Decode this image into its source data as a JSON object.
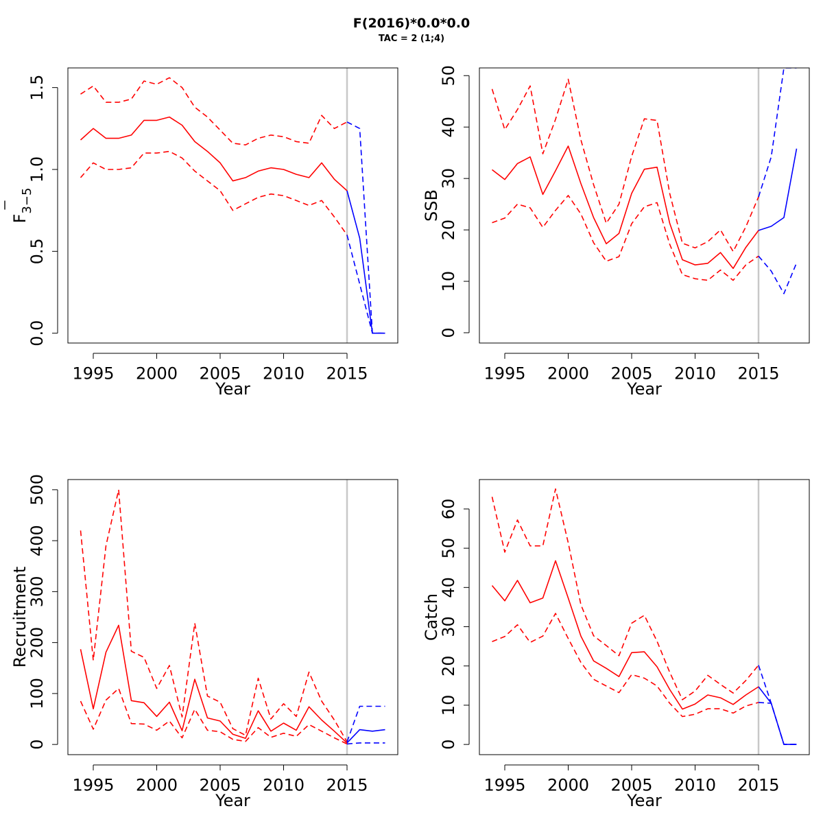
{
  "title": "F(2016)*0.0*0.0",
  "subtitle": "TAC = 2 (1;4)",
  "colors": {
    "historic": "#ff0000",
    "projection": "#0000ff",
    "refline": "#c8c8c8"
  },
  "chart_data": [
    {
      "type": "line",
      "ylabel_main": "F",
      "ylabel_sub": "3−5",
      "xlabel": "Year",
      "xlim": [
        1993,
        2019
      ],
      "ylim": [
        -0.06,
        1.62
      ],
      "xticks": [
        1995,
        2000,
        2005,
        2010,
        2015
      ],
      "yticks": [
        0.0,
        0.5,
        1.0,
        1.5
      ],
      "ytick_labels": [
        "0.0",
        "0.5",
        "1.0",
        "1.5"
      ],
      "vline": 2015,
      "historic": {
        "x": [
          1994,
          1995,
          1996,
          1997,
          1998,
          1999,
          2000,
          2001,
          2002,
          2003,
          2004,
          2005,
          2006,
          2007,
          2008,
          2009,
          2010,
          2011,
          2012,
          2013,
          2014,
          2015
        ],
        "mid": [
          1.18,
          1.25,
          1.19,
          1.19,
          1.21,
          1.3,
          1.3,
          1.32,
          1.27,
          1.17,
          1.11,
          1.04,
          0.93,
          0.95,
          0.99,
          1.01,
          1.0,
          0.97,
          0.95,
          1.04,
          0.94,
          0.87
        ],
        "upper": [
          1.46,
          1.51,
          1.41,
          1.41,
          1.43,
          1.54,
          1.52,
          1.56,
          1.5,
          1.38,
          1.32,
          1.24,
          1.16,
          1.15,
          1.19,
          1.21,
          1.2,
          1.17,
          1.16,
          1.33,
          1.25,
          1.29
        ],
        "lower": [
          0.95,
          1.04,
          1.0,
          1.0,
          1.01,
          1.1,
          1.1,
          1.11,
          1.07,
          0.99,
          0.93,
          0.87,
          0.75,
          0.79,
          0.83,
          0.85,
          0.84,
          0.81,
          0.78,
          0.81,
          0.71,
          0.6
        ]
      },
      "projection": {
        "x": [
          2015,
          2016,
          2017,
          2018
        ],
        "mid": [
          0.87,
          0.58,
          0.0,
          0.0
        ],
        "upper": [
          1.29,
          1.25,
          0.0,
          0.0
        ],
        "lower": [
          0.6,
          0.3,
          0.0,
          0.0
        ]
      }
    },
    {
      "type": "line",
      "ylabel_main": "SSB",
      "ylabel_sub": "",
      "xlabel": "Year",
      "xlim": [
        1993,
        2019
      ],
      "ylim": [
        -2,
        51.5
      ],
      "xticks": [
        1995,
        2000,
        2005,
        2010,
        2015
      ],
      "yticks": [
        0,
        10,
        20,
        30,
        40,
        50
      ],
      "ytick_labels": [
        "0",
        "10",
        "20",
        "30",
        "40",
        "50"
      ],
      "vline": 2015,
      "historic": {
        "x": [
          1994,
          1995,
          1996,
          1997,
          1998,
          1999,
          2000,
          2001,
          2002,
          2003,
          2004,
          2005,
          2006,
          2007,
          2008,
          2009,
          2010,
          2011,
          2012,
          2013,
          2014,
          2015
        ],
        "mid": [
          31.7,
          29.8,
          32.9,
          34.2,
          26.9,
          31.5,
          36.3,
          29.0,
          22.4,
          17.3,
          19.3,
          27.1,
          31.8,
          32.2,
          21.3,
          14.2,
          13.2,
          13.5,
          15.6,
          12.5,
          16.6,
          19.9
        ],
        "upper": [
          47.4,
          39.5,
          43.4,
          48.0,
          34.8,
          41.5,
          49.3,
          37.5,
          28.8,
          21.3,
          25.0,
          34.3,
          41.6,
          41.3,
          27.1,
          17.4,
          16.5,
          17.7,
          20.0,
          15.8,
          20.6,
          26.4
        ],
        "lower": [
          21.4,
          22.3,
          25.0,
          24.3,
          20.5,
          23.8,
          26.7,
          23.1,
          17.5,
          13.9,
          14.8,
          21.2,
          24.5,
          25.3,
          17.2,
          11.3,
          10.5,
          10.2,
          12.2,
          10.2,
          13.2,
          14.9
        ]
      },
      "projection": {
        "x": [
          2015,
          2016,
          2017,
          2018
        ],
        "mid": [
          19.9,
          20.7,
          22.4,
          35.8
        ],
        "upper": [
          26.4,
          34.2,
          51.5,
          51.5
        ],
        "lower": [
          14.9,
          12.0,
          7.6,
          13.6
        ]
      }
    },
    {
      "type": "line",
      "ylabel_main": "Recruitment",
      "ylabel_sub": "",
      "xlabel": "Year",
      "xlim": [
        1993,
        2019
      ],
      "ylim": [
        -20,
        520
      ],
      "xticks": [
        1995,
        2000,
        2005,
        2010,
        2015
      ],
      "yticks": [
        0,
        100,
        200,
        300,
        400,
        500
      ],
      "ytick_labels": [
        "0",
        "100",
        "200",
        "300",
        "400",
        "500"
      ],
      "vline": 2015,
      "historic": {
        "x": [
          1994,
          1995,
          1996,
          1997,
          1998,
          1999,
          2000,
          2001,
          2002,
          2003,
          2004,
          2005,
          2006,
          2007,
          2008,
          2009,
          2010,
          2011,
          2012,
          2013,
          2014,
          2015
        ],
        "mid": [
          187,
          70,
          181,
          234,
          86,
          82,
          55,
          83,
          27,
          128,
          52,
          46,
          20,
          12,
          66,
          26,
          42,
          28,
          74,
          48,
          26,
          3
        ],
        "upper": [
          420,
          165,
          390,
          500,
          183,
          171,
          110,
          155,
          54,
          238,
          95,
          83,
          31,
          18,
          130,
          50,
          80,
          55,
          142,
          85,
          48,
          5
        ],
        "lower": [
          85,
          30,
          87,
          110,
          41,
          40,
          28,
          46,
          13,
          69,
          28,
          25,
          10,
          6,
          33,
          14,
          22,
          16,
          39,
          26,
          13,
          1
        ]
      },
      "projection": {
        "x": [
          2015,
          2016,
          2017,
          2018
        ],
        "mid": [
          3,
          29,
          26,
          29
        ],
        "upper": [
          5,
          75,
          75,
          75
        ],
        "lower": [
          1,
          3,
          3,
          3
        ]
      }
    },
    {
      "type": "line",
      "ylabel_main": "Catch",
      "ylabel_sub": "",
      "xlabel": "Year",
      "xlim": [
        1993,
        2019
      ],
      "ylim": [
        -2.6,
        67.5
      ],
      "xticks": [
        1995,
        2000,
        2005,
        2010,
        2015
      ],
      "yticks": [
        0,
        10,
        20,
        30,
        40,
        50,
        60
      ],
      "ytick_labels": [
        "0",
        "10",
        "20",
        "30",
        "40",
        "50",
        "60"
      ],
      "vline": 2015,
      "historic": {
        "x": [
          1994,
          1995,
          1996,
          1997,
          1998,
          1999,
          2000,
          2001,
          2002,
          2003,
          2004,
          2005,
          2006,
          2007,
          2008,
          2009,
          2010,
          2011,
          2012,
          2013,
          2014,
          2015
        ],
        "mid": [
          40.5,
          36.6,
          41.8,
          36.1,
          37.3,
          46.8,
          37.3,
          27.6,
          21.3,
          19.4,
          17.3,
          23.4,
          23.6,
          19.8,
          14.0,
          9.0,
          10.3,
          12.6,
          11.9,
          10.2,
          12.6,
          14.7
        ],
        "upper": [
          63.1,
          49.0,
          57.2,
          50.6,
          50.6,
          65.1,
          51.4,
          35.6,
          27.7,
          25.2,
          22.6,
          30.9,
          32.9,
          26.3,
          18.4,
          11.4,
          13.6,
          17.6,
          15.3,
          13.1,
          16.3,
          20.2
        ],
        "lower": [
          26.2,
          27.5,
          30.5,
          26.0,
          27.6,
          33.4,
          27.0,
          20.9,
          16.6,
          14.9,
          13.2,
          17.8,
          16.9,
          14.9,
          10.5,
          7.1,
          7.7,
          9.1,
          9.1,
          8.0,
          9.8,
          10.7
        ]
      },
      "projection": {
        "x": [
          2015,
          2016,
          2017,
          2018
        ],
        "mid": [
          14.7,
          10.5,
          0,
          0
        ],
        "upper": [
          20.2,
          10.5,
          0,
          0
        ],
        "lower": [
          10.7,
          10.5,
          0,
          0
        ]
      }
    }
  ]
}
